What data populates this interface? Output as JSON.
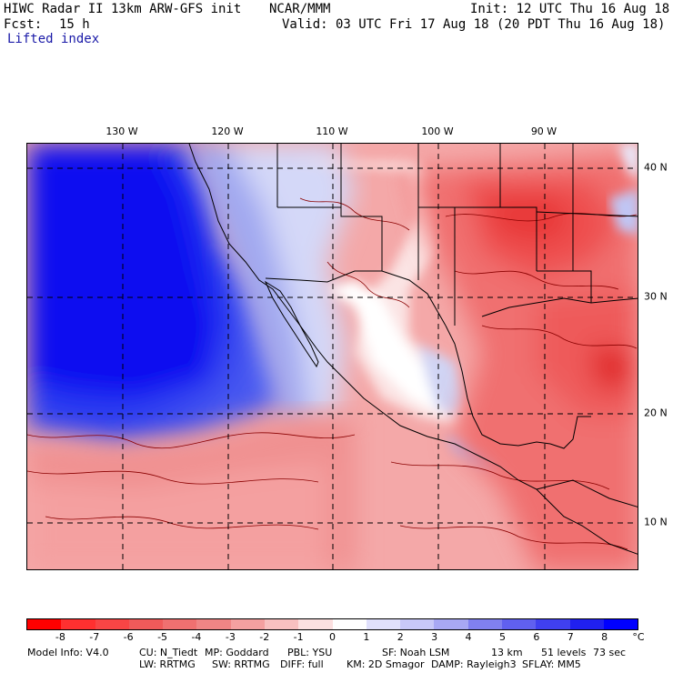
{
  "header": {
    "title": "HIWC Radar II 13km ARW-GFS init",
    "org": "NCAR/MMM",
    "init": "Init: 12 UTC Thu 16 Aug 18",
    "fcst_label": "Fcst:",
    "fcst_value": "15 h",
    "valid": "Valid: 03 UTC Fri 17 Aug 18 (20 PDT Thu 16 Aug 18)",
    "field": "Lifted index"
  },
  "map": {
    "lon_labels": [
      "130 W",
      "120 W",
      "110 W",
      "100 W",
      "90 W"
    ],
    "lat_labels": [
      "40 N",
      "30 N",
      "20 N",
      "10 N"
    ]
  },
  "colorbar": {
    "ticks": [
      "-8",
      "-7",
      "-6",
      "-5",
      "-4",
      "-3",
      "-2",
      "-1",
      "0",
      "1",
      "2",
      "3",
      "4",
      "5",
      "6",
      "7",
      "8"
    ],
    "unit": "°C",
    "colors": [
      "#ff0000",
      "#ff3030",
      "#f84545",
      "#f05a5a",
      "#f07070",
      "#f08585",
      "#f4a0a0",
      "#f8c0c0",
      "#fce0e0",
      "#ffffff",
      "#e0e0fc",
      "#c8c8f8",
      "#a8a8f4",
      "#8080f0",
      "#6060f0",
      "#4040f0",
      "#2020f0",
      "#0000ff"
    ]
  },
  "footer": {
    "line1": [
      {
        "key": "model",
        "text": "Model Info: V4.0"
      },
      {
        "key": "cu",
        "text": "CU: N_Tiedt"
      },
      {
        "key": "mp",
        "text": "MP: Goddard"
      },
      {
        "key": "pbl",
        "text": "PBL: YSU"
      },
      {
        "key": "sf",
        "text": "SF: Noah LSM"
      },
      {
        "key": "res",
        "text": "13 km"
      },
      {
        "key": "levels",
        "text": "51 levels"
      },
      {
        "key": "dt",
        "text": "73 sec"
      }
    ],
    "line2": [
      {
        "key": "lw",
        "text": "LW: RRTMG"
      },
      {
        "key": "sw",
        "text": "SW: RRTMG"
      },
      {
        "key": "diff",
        "text": "DIFF: full"
      },
      {
        "key": "km",
        "text": "KM: 2D Smagor"
      },
      {
        "key": "damp",
        "text": "DAMP: Rayleigh3"
      },
      {
        "key": "sflay",
        "text": "SFLAY: MM5"
      }
    ]
  }
}
